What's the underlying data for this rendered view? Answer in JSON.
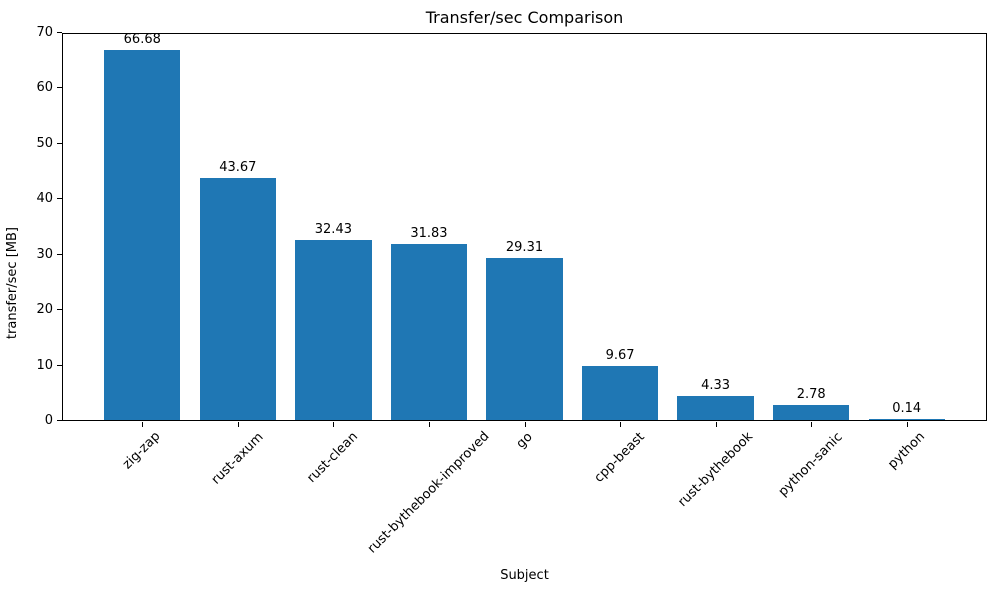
{
  "chart_data": {
    "type": "bar",
    "title": "Transfer/sec Comparison",
    "xlabel": "Subject",
    "ylabel": "transfer/sec [MB]",
    "categories": [
      "zig-zap",
      "rust-axum",
      "rust-clean",
      "rust-bythebook-improved",
      "go",
      "cpp-beast",
      "rust-bythebook",
      "python-sanic",
      "python"
    ],
    "values": [
      66.68,
      43.67,
      32.43,
      31.83,
      29.31,
      9.67,
      4.33,
      2.78,
      0.14
    ],
    "bar_value_labels": [
      "66.68",
      "43.67",
      "32.43",
      "31.83",
      "29.31",
      "9.67",
      "4.33",
      "2.78",
      "0.14"
    ],
    "ylim": [
      0,
      70
    ],
    "xlim": [
      -0.84,
      8.84
    ],
    "yticks": [
      0,
      10,
      20,
      30,
      40,
      50,
      60,
      70
    ],
    "ytick_labels": [
      "0",
      "10",
      "20",
      "30",
      "40",
      "50",
      "60",
      "70"
    ],
    "bar_width_data_units": 0.8,
    "x_tick_rotation_deg": 45,
    "grid": false,
    "legend": null,
    "colors": {
      "bar": "#1f77b4",
      "text": "#000000",
      "spine": "#000000",
      "background": "#ffffff"
    }
  }
}
